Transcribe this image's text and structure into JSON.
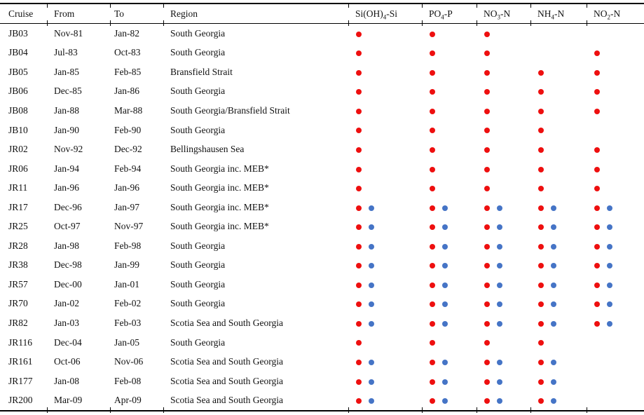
{
  "table": {
    "columns": [
      {
        "key": "cruise",
        "label": "Cruise"
      },
      {
        "key": "from",
        "label": "From"
      },
      {
        "key": "to",
        "label": "To"
      },
      {
        "key": "region",
        "label": "Region"
      }
    ],
    "nutrient_columns": [
      {
        "key": "si",
        "pre": "Si(OH)",
        "sub": "4",
        "post": "-Si"
      },
      {
        "key": "po4",
        "pre": "PO",
        "sub": "4",
        "post": "-P"
      },
      {
        "key": "no3",
        "pre": "NO",
        "sub": "3",
        "post": "-N"
      },
      {
        "key": "nh4",
        "pre": "NH",
        "sub": "4",
        "post": "-N"
      },
      {
        "key": "no2",
        "pre": "NO",
        "sub": "2",
        "post": "-N"
      }
    ],
    "marker_colors": {
      "red": "#ee0f0f",
      "blue": "#4574c6"
    },
    "rows": [
      {
        "cruise": "JB03",
        "from": "Nov-81",
        "to": "Jan-82",
        "region": "South Georgia",
        "markers": [
          "red",
          "red",
          "red",
          "none",
          "none"
        ]
      },
      {
        "cruise": "JB04",
        "from": "Jul-83",
        "to": "Oct-83",
        "region": "South Georgia",
        "markers": [
          "red",
          "red",
          "red",
          "none",
          "red"
        ]
      },
      {
        "cruise": "JB05",
        "from": "Jan-85",
        "to": "Feb-85",
        "region": "Bransfield Strait",
        "markers": [
          "red",
          "red",
          "red",
          "red",
          "red"
        ]
      },
      {
        "cruise": "JB06",
        "from": "Dec-85",
        "to": "Jan-86",
        "region": "South Georgia",
        "markers": [
          "red",
          "red",
          "red",
          "red",
          "red"
        ]
      },
      {
        "cruise": "JB08",
        "from": "Jan-88",
        "to": "Mar-88",
        "region": "South Georgia/Bransfield Strait",
        "markers": [
          "red",
          "red",
          "red",
          "red",
          "red"
        ]
      },
      {
        "cruise": "JB10",
        "from": "Jan-90",
        "to": "Feb-90",
        "region": "South Georgia",
        "markers": [
          "red",
          "red",
          "red",
          "red",
          "none"
        ]
      },
      {
        "cruise": "JR02",
        "from": "Nov-92",
        "to": "Dec-92",
        "region": "Bellingshausen Sea",
        "markers": [
          "red",
          "red",
          "red",
          "red",
          "red"
        ]
      },
      {
        "cruise": "JR06",
        "from": "Jan-94",
        "to": "Feb-94",
        "region": "South Georgia inc. MEB*",
        "markers": [
          "red",
          "red",
          "red",
          "red",
          "red"
        ]
      },
      {
        "cruise": "JR11",
        "from": "Jan-96",
        "to": "Jan-96",
        "region": "South Georgia inc. MEB*",
        "markers": [
          "red",
          "red",
          "red",
          "red",
          "red"
        ]
      },
      {
        "cruise": "JR17",
        "from": "Dec-96",
        "to": "Jan-97",
        "region": "South Georgia inc. MEB*",
        "markers": [
          "both",
          "both",
          "both",
          "both",
          "both"
        ]
      },
      {
        "cruise": "JR25",
        "from": "Oct-97",
        "to": "Nov-97",
        "region": "South Georgia inc. MEB*",
        "markers": [
          "both",
          "both",
          "both",
          "both",
          "both"
        ]
      },
      {
        "cruise": "JR28",
        "from": "Jan-98",
        "to": "Feb-98",
        "region": "South Georgia",
        "markers": [
          "both",
          "both",
          "both",
          "both",
          "both"
        ]
      },
      {
        "cruise": "JR38",
        "from": "Dec-98",
        "to": "Jan-99",
        "region": "South Georgia",
        "markers": [
          "both",
          "both",
          "both",
          "both",
          "both"
        ]
      },
      {
        "cruise": "JR57",
        "from": "Dec-00",
        "to": "Jan-01",
        "region": "South Georgia",
        "markers": [
          "both",
          "both",
          "both",
          "both",
          "both"
        ]
      },
      {
        "cruise": "JR70",
        "from": "Jan-02",
        "to": "Feb-02",
        "region": "South Georgia",
        "markers": [
          "both",
          "both",
          "both",
          "both",
          "both"
        ]
      },
      {
        "cruise": "JR82",
        "from": "Jan-03",
        "to": "Feb-03",
        "region": "Scotia Sea and South Georgia",
        "markers": [
          "both",
          "both",
          "both",
          "both",
          "both"
        ]
      },
      {
        "cruise": "JR116",
        "from": "Dec-04",
        "to": "Jan-05",
        "region": "South Georgia",
        "markers": [
          "red",
          "red",
          "red",
          "red",
          "none"
        ]
      },
      {
        "cruise": "JR161",
        "from": "Oct-06",
        "to": "Nov-06",
        "region": "Scotia Sea and South Georgia",
        "markers": [
          "both",
          "both",
          "both",
          "both",
          "none"
        ]
      },
      {
        "cruise": "JR177",
        "from": "Jan-08",
        "to": "Feb-08",
        "region": "Scotia Sea and South Georgia",
        "markers": [
          "both",
          "both",
          "both",
          "both",
          "none"
        ]
      },
      {
        "cruise": "JR200",
        "from": "Mar-09",
        "to": "Apr-09",
        "region": "Scotia Sea and South Georgia",
        "markers": [
          "both",
          "both",
          "both",
          "both",
          "none"
        ]
      }
    ]
  }
}
